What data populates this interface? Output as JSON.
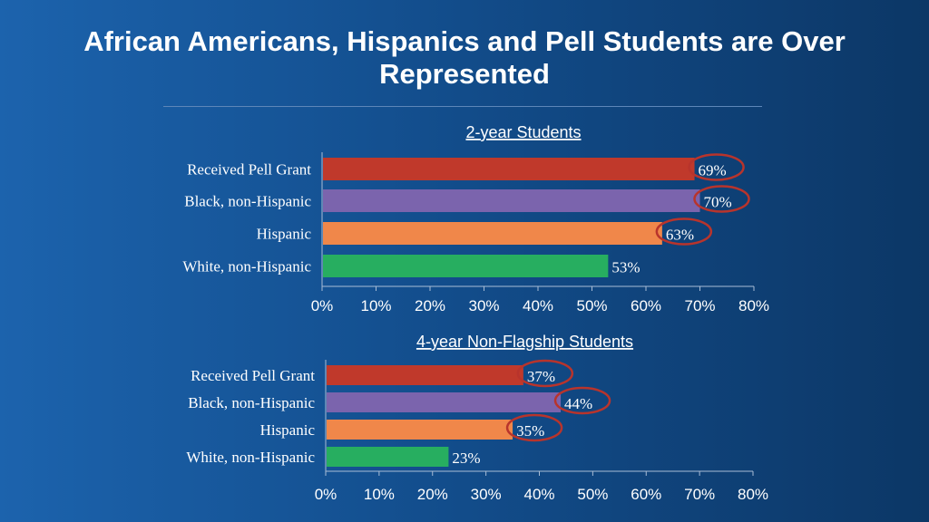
{
  "title": "African Americans, Hispanics and Pell Students are Over Represented",
  "chart_data": [
    {
      "type": "bar",
      "orientation": "horizontal",
      "title": "2-year Students",
      "categories": [
        "Received Pell Grant",
        "Black, non-Hispanic",
        "Hispanic",
        "White, non-Hispanic"
      ],
      "values": [
        69,
        70,
        63,
        53
      ],
      "labels": [
        "69%",
        "70%",
        "63%",
        "53%"
      ],
      "colors": [
        "#c0392b",
        "#7b64ad",
        "#f0874a",
        "#27ae60"
      ],
      "circled": [
        true,
        true,
        true,
        false
      ],
      "xlim": [
        0,
        80
      ],
      "ticks": [
        "0%",
        "10%",
        "20%",
        "30%",
        "40%",
        "50%",
        "60%",
        "70%",
        "80%"
      ]
    },
    {
      "type": "bar",
      "orientation": "horizontal",
      "title": "4-year Non-Flagship Students",
      "categories": [
        "Received Pell Grant",
        "Black, non-Hispanic",
        "Hispanic",
        "White, non-Hispanic"
      ],
      "values": [
        37,
        44,
        35,
        23
      ],
      "labels": [
        "37%",
        "44%",
        "35%",
        "23%"
      ],
      "colors": [
        "#c0392b",
        "#7b64ad",
        "#f0874a",
        "#27ae60"
      ],
      "circled": [
        true,
        true,
        true,
        false
      ],
      "xlim": [
        0,
        80
      ],
      "ticks": [
        "0%",
        "10%",
        "20%",
        "30%",
        "40%",
        "50%",
        "60%",
        "70%",
        "80%"
      ]
    }
  ]
}
